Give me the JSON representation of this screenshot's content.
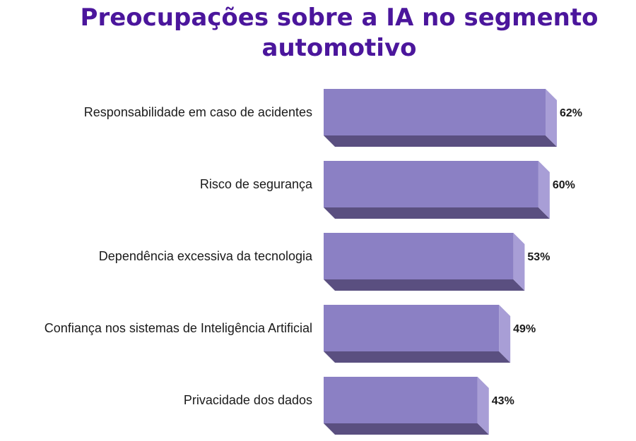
{
  "colors": {
    "title": "#4b169c",
    "bar_front": "#8b80c4",
    "bar_side": "#a89ed6",
    "bar_bottom": "#5a4f80"
  },
  "chart_data": {
    "type": "bar",
    "orientation": "horizontal",
    "title": "Preocupações sobre a IA no segmento automotivo",
    "categories": [
      "Responsabilidade em caso de acidentes",
      "Risco de segurança",
      "Dependência excessiva da tecnologia",
      "Confiança nos sistemas de Inteligência Artificial",
      "Privacidade dos dados"
    ],
    "values": [
      62,
      60,
      53,
      49,
      43
    ],
    "value_labels": [
      "62%",
      "60%",
      "53%",
      "49%",
      "43%"
    ],
    "unit": "%",
    "xlabel": "",
    "ylabel": "",
    "xlim": [
      0,
      62
    ],
    "grid": false,
    "legend": "none"
  }
}
